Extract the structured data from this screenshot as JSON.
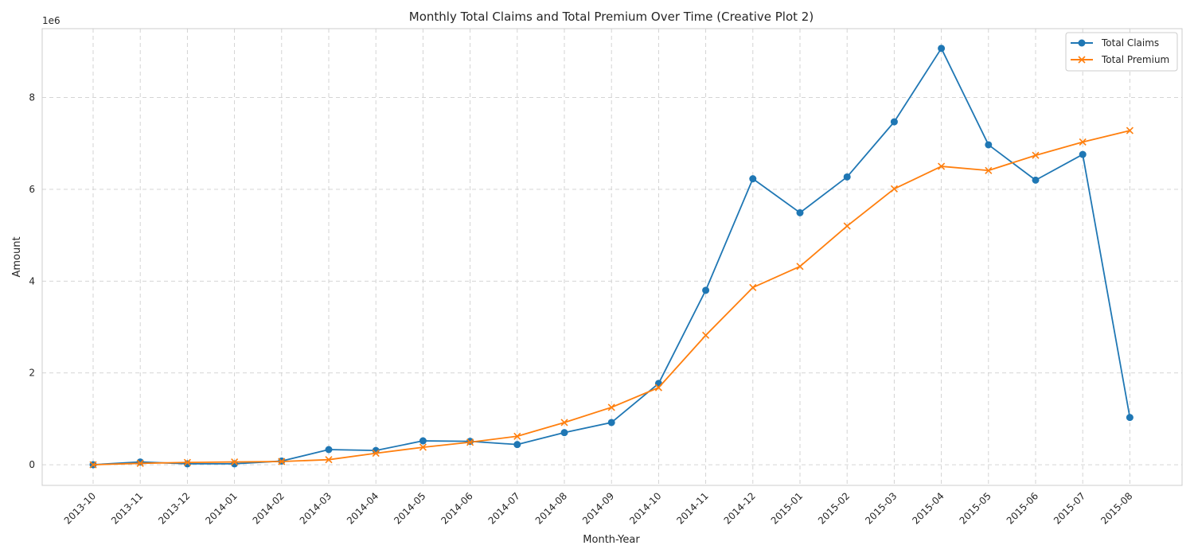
{
  "chart_data": {
    "type": "line",
    "title": "Monthly Total Claims and Total Premium Over Time (Creative Plot 2)",
    "xlabel": "Month-Year",
    "ylabel": "Amount",
    "y_offset_label": "1e6",
    "ylim": [
      -0.45,
      9.5
    ],
    "yticks": [
      0,
      2,
      4,
      6,
      8
    ],
    "grid": true,
    "legend_position": "top-right",
    "categories": [
      "2013-10",
      "2013-11",
      "2013-12",
      "2014-01",
      "2014-02",
      "2014-03",
      "2014-04",
      "2014-05",
      "2014-06",
      "2014-07",
      "2014-08",
      "2014-09",
      "2014-10",
      "2014-11",
      "2014-12",
      "2015-01",
      "2015-02",
      "2015-03",
      "2015-04",
      "2015-05",
      "2015-06",
      "2015-07",
      "2015-08"
    ],
    "series": [
      {
        "name": "Total Claims",
        "color": "#1f77b4",
        "marker": "circle",
        "values": [
          0.0,
          0.06,
          0.02,
          0.02,
          0.08,
          0.33,
          0.31,
          0.52,
          0.51,
          0.44,
          0.7,
          0.92,
          1.77,
          3.8,
          6.23,
          5.49,
          6.27,
          7.47,
          9.07,
          6.97,
          6.2,
          6.76,
          1.03
        ]
      },
      {
        "name": "Total Premium",
        "color": "#ff7f0e",
        "marker": "x",
        "values": [
          0.0,
          0.03,
          0.05,
          0.06,
          0.07,
          0.11,
          0.25,
          0.38,
          0.49,
          0.62,
          0.92,
          1.25,
          1.68,
          2.82,
          3.86,
          4.32,
          5.2,
          6.01,
          6.5,
          6.41,
          6.74,
          7.03,
          7.28
        ]
      }
    ]
  }
}
